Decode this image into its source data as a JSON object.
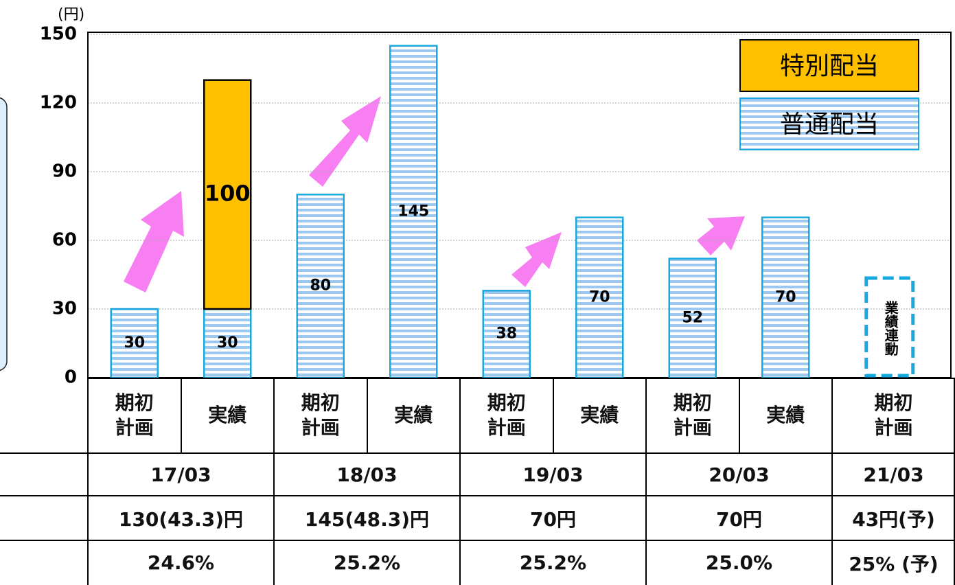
{
  "chart_data": {
    "type": "bar",
    "stacked": true,
    "y_unit": "(円)",
    "categories": [
      "期初計画",
      "実績",
      "期初計画",
      "実績",
      "期初計画",
      "実績",
      "期初計画",
      "実績",
      "期初計画"
    ],
    "series": [
      {
        "name": "普通配当",
        "color": "#9cc8ef",
        "values": [
          30,
          30,
          80,
          145,
          38,
          70,
          52,
          70,
          null
        ]
      },
      {
        "name": "特別配当",
        "color": "#ffc000",
        "values": [
          null,
          100,
          null,
          null,
          null,
          null,
          null,
          null,
          null
        ]
      }
    ],
    "ylim": [
      0,
      150
    ],
    "yticks": [
      0,
      30,
      60,
      90,
      120,
      150
    ],
    "grid": true,
    "annotation": "業績連動"
  },
  "table": {
    "periods": [
      "17/03",
      "18/03",
      "19/03",
      "20/03",
      "21/03"
    ],
    "dividends": [
      "130(43.3)円",
      "145(48.3)円",
      "70円",
      "70円",
      "43円(予)"
    ],
    "payout_ratios": [
      "24.6%",
      "25.2%",
      "25.2%",
      "25.0%",
      "25% (予)"
    ]
  }
}
